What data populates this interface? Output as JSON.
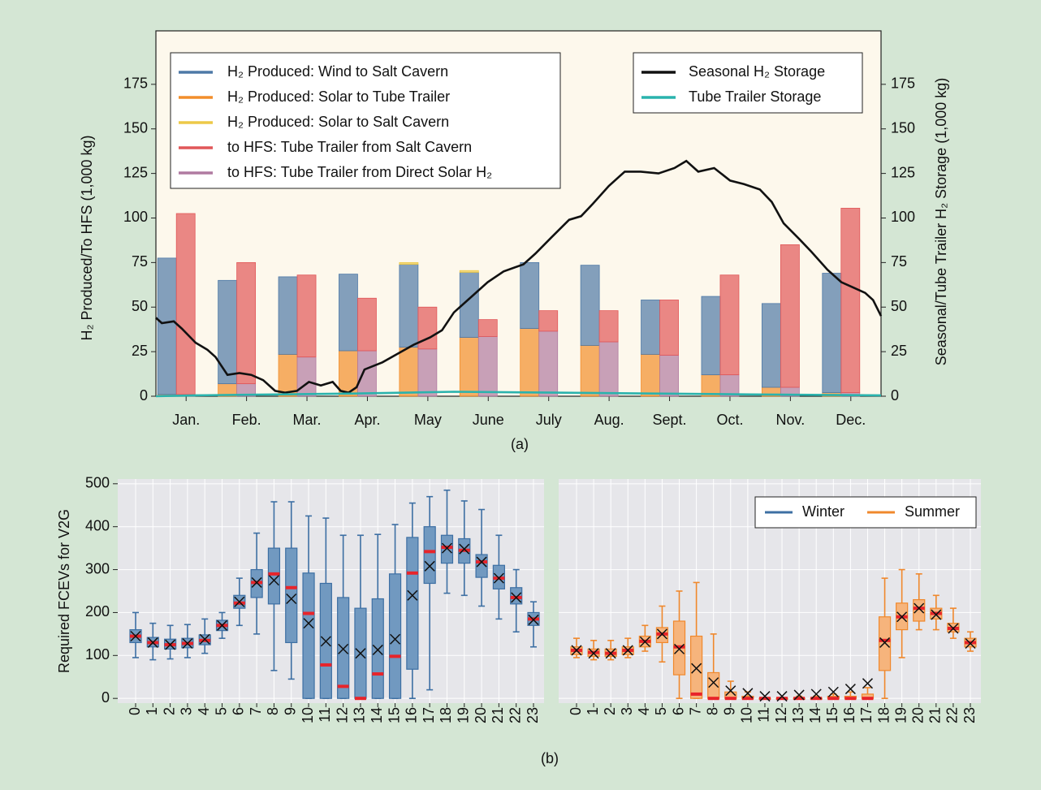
{
  "chart_data": [
    {
      "type": "bar",
      "caption": "(a)",
      "ylabel": "H₂ Produced/To HFS (1,000 kg)",
      "y2label": "Seasonal/Tube Trailer H₂ Storage (1,000 kg)",
      "categories": [
        "Jan.",
        "Feb.",
        "Mar.",
        "Apr.",
        "May",
        "June",
        "July",
        "Aug.",
        "Sept.",
        "Oct.",
        "Nov.",
        "Dec."
      ],
      "ylim": [
        0,
        205
      ],
      "yticks": [
        0,
        25,
        50,
        75,
        100,
        125,
        150,
        175
      ],
      "y2lim": [
        0,
        205
      ],
      "y2ticks": [
        0,
        25,
        50,
        75,
        100,
        125,
        150,
        175
      ],
      "xlim": [
        0,
        365
      ],
      "grid": false,
      "legend": "upper left",
      "line_legend": "upper right",
      "stack_order": [
        [
          1,
          0,
          2
        ],
        [
          4,
          3
        ]
      ],
      "series": [
        {
          "name": "H₂ Produced: Wind to Salt Cavern",
          "color": "#4e79a7",
          "values": [
            76.5,
            58,
            43.5,
            43,
            46.5,
            36.5,
            37,
            45,
            30.5,
            44,
            47,
            67
          ]
        },
        {
          "name": "H₂ Produced: Solar to Tube Trailer",
          "color": "#f28e2b",
          "values": [
            1,
            7,
            23.5,
            25.5,
            27.5,
            33,
            38,
            28.5,
            23.5,
            12,
            5,
            2
          ]
        },
        {
          "name": "H₂ Produced: Solar to Salt Cavern",
          "color": "#edc948",
          "values": [
            0,
            0,
            0,
            0,
            1,
            1,
            0,
            0,
            0,
            0,
            0,
            0
          ]
        },
        {
          "name": "to HFS: Tube Trailer from Salt Cavern",
          "color": "#e15759",
          "values": [
            101.5,
            68,
            46,
            29.5,
            23.5,
            9.5,
            11.5,
            17.5,
            31,
            56,
            80,
            103.5
          ]
        },
        {
          "name": "to HFS: Tube Trailer from Direct Solar H₂",
          "color": "#b07aa1",
          "values": [
            1,
            7,
            22,
            25.5,
            26.5,
            33.5,
            36.5,
            30.5,
            23,
            12,
            5,
            2
          ]
        },
        {
          "name": "Seasonal H₂ Storage",
          "type": "line",
          "axis": "y2",
          "color": "#111111",
          "x": [
            0,
            3,
            9,
            13,
            20,
            26,
            30,
            36,
            42,
            48,
            54,
            60,
            65,
            71,
            77,
            83,
            89,
            93,
            97,
            101,
            105,
            114,
            122,
            130,
            138,
            144,
            150,
            159,
            167,
            175,
            185,
            191,
            199,
            208,
            214,
            220,
            228,
            236,
            244,
            253,
            261,
            267,
            273,
            281,
            289,
            296,
            304,
            310,
            316,
            324,
            330,
            338,
            345,
            351,
            357,
            361,
            365
          ],
          "values": [
            44,
            41,
            42,
            38,
            30,
            26,
            22,
            12,
            13,
            12,
            9,
            3,
            2,
            3,
            8,
            6,
            8,
            3,
            2,
            5,
            15,
            19,
            24,
            29,
            33,
            37,
            47,
            56,
            64,
            70,
            74,
            80,
            89,
            99,
            101,
            108,
            118,
            126,
            126,
            125,
            128,
            132,
            126,
            128,
            121,
            119,
            116,
            109,
            97,
            88,
            81,
            71,
            64,
            61,
            58,
            54,
            45
          ]
        },
        {
          "name": "Tube Trailer Storage",
          "type": "line",
          "axis": "y2",
          "color": "#2ab3ad",
          "x": [
            0,
            20,
            60,
            100,
            150,
            200,
            250,
            300,
            365
          ],
          "values": [
            0,
            0.5,
            1,
            1.5,
            2.5,
            2,
            1.5,
            1,
            0.5
          ]
        }
      ]
    },
    {
      "type": "box",
      "caption": "(b)",
      "ylabel": "Required FCEVs for V2G",
      "categories": [
        "0",
        "1",
        "2",
        "3",
        "4",
        "5",
        "6",
        "7",
        "8",
        "9",
        "10",
        "11",
        "12",
        "13",
        "14",
        "15",
        "16",
        "17",
        "18",
        "19",
        "20",
        "21",
        "22",
        "23"
      ],
      "ylim": [
        -11,
        511
      ],
      "yticks": [
        0,
        100,
        200,
        300,
        400,
        500
      ],
      "grid": true,
      "series": [
        {
          "name": "Winter",
          "color": "#3d6fa3",
          "fill": "#7199c0",
          "whislo": [
            95,
            90,
            92,
            95,
            105,
            140,
            170,
            150,
            65,
            45,
            0,
            0,
            0,
            0,
            0,
            0,
            0,
            20,
            245,
            240,
            215,
            185,
            155,
            120
          ],
          "q1": [
            130,
            120,
            115,
            118,
            125,
            158,
            210,
            235,
            220,
            130,
            0,
            0,
            0,
            0,
            0,
            0,
            68,
            268,
            315,
            315,
            282,
            255,
            220,
            170
          ],
          "med": [
            145,
            130,
            125,
            128,
            135,
            170,
            222,
            270,
            290,
            258,
            198,
            78,
            28,
            0,
            57,
            98,
            292,
            342,
            352,
            345,
            318,
            280,
            235,
            185
          ],
          "q3": [
            160,
            142,
            138,
            140,
            148,
            182,
            240,
            300,
            350,
            350,
            292,
            268,
            235,
            210,
            232,
            290,
            375,
            400,
            380,
            372,
            335,
            310,
            258,
            200
          ],
          "whishi": [
            200,
            175,
            170,
            172,
            185,
            200,
            280,
            385,
            458,
            458,
            425,
            420,
            380,
            380,
            382,
            405,
            455,
            470,
            485,
            460,
            440,
            380,
            300,
            225
          ],
          "mean": [
            145,
            130,
            125,
            128,
            138,
            170,
            225,
            270,
            275,
            232,
            175,
            133,
            115,
            105,
            113,
            138,
            240,
            308,
            350,
            348,
            318,
            280,
            235,
            183
          ]
        }
      ]
    },
    {
      "type": "box",
      "sharey": true,
      "grid": true,
      "legend": "upper right",
      "categories": [
        "0",
        "1",
        "2",
        "3",
        "4",
        "5",
        "6",
        "7",
        "8",
        "9",
        "10",
        "11",
        "12",
        "13",
        "14",
        "15",
        "16",
        "17",
        "18",
        "19",
        "20",
        "21",
        "22",
        "23"
      ],
      "series": [
        {
          "name": "Summer",
          "color": "#f0882c",
          "fill": "#f6b47c",
          "whislo": [
            95,
            90,
            90,
            95,
            110,
            85,
            0,
            0,
            0,
            0,
            0,
            0,
            0,
            0,
            0,
            0,
            0,
            0,
            0,
            95,
            160,
            160,
            140,
            110
          ],
          "q1": [
            102,
            98,
            98,
            102,
            120,
            130,
            55,
            0,
            0,
            0,
            0,
            0,
            0,
            0,
            0,
            0,
            0,
            0,
            65,
            160,
            180,
            185,
            155,
            120
          ],
          "med": [
            112,
            107,
            105,
            112,
            133,
            150,
            120,
            10,
            0,
            0,
            0,
            0,
            0,
            0,
            0,
            0,
            0,
            0,
            135,
            190,
            210,
            198,
            163,
            130
          ],
          "q3": [
            120,
            115,
            115,
            120,
            145,
            165,
            180,
            145,
            60,
            15,
            5,
            0,
            0,
            0,
            0,
            5,
            5,
            10,
            190,
            222,
            230,
            210,
            175,
            140
          ],
          "whishi": [
            140,
            135,
            135,
            140,
            170,
            215,
            250,
            270,
            150,
            40,
            15,
            0,
            0,
            5,
            5,
            10,
            15,
            25,
            280,
            300,
            290,
            240,
            210,
            155
          ],
          "mean": [
            112,
            105,
            105,
            112,
            132,
            150,
            115,
            70,
            37,
            18,
            12,
            5,
            5,
            8,
            10,
            15,
            22,
            35,
            130,
            190,
            210,
            195,
            163,
            128
          ]
        }
      ]
    }
  ]
}
